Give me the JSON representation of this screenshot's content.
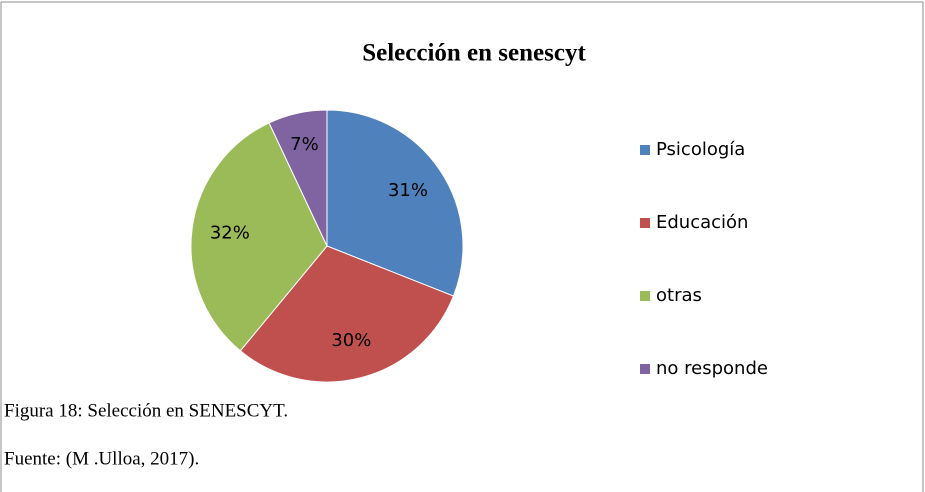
{
  "chart_data": {
    "type": "pie",
    "title": "Selección en senescyt",
    "categories": [
      "Psicología",
      "Educación",
      "otras",
      "no responde"
    ],
    "values": [
      31,
      30,
      32,
      7
    ],
    "value_labels": [
      "31%",
      "30%",
      "32%",
      "7%"
    ],
    "colors": [
      "#4f81bd",
      "#c0504d",
      "#9bbb59",
      "#8064a2"
    ],
    "legend": "right"
  },
  "caption": "Figura 18: Selección en SENESCYT.",
  "source": "Fuente: (M .Ulloa, 2017)."
}
